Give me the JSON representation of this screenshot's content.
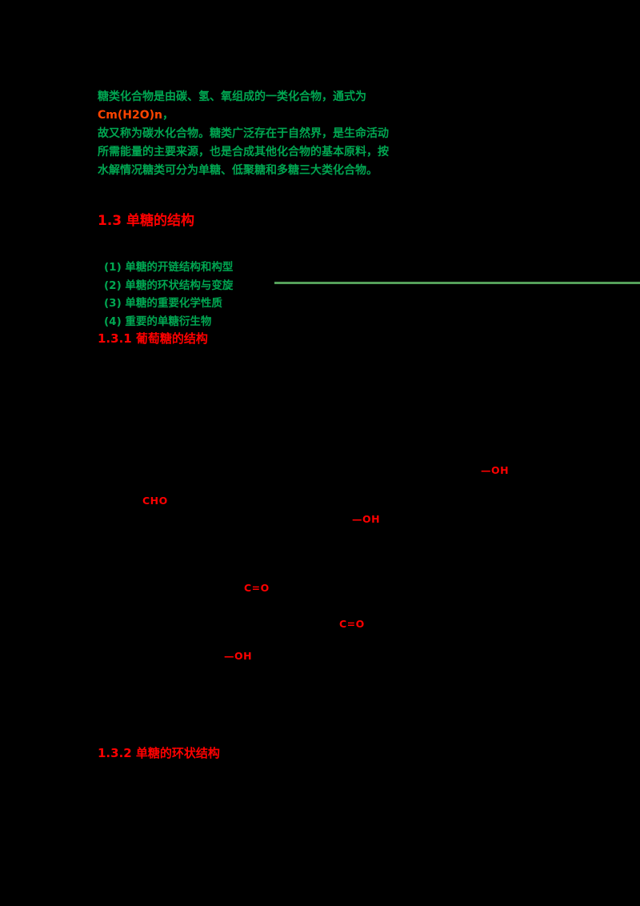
{
  "colors": {
    "background": "#000000",
    "green_text": "#00a651",
    "red_text": "#ff0000",
    "orange_red_inline": "#ff4400",
    "divider_green": "#55a05a"
  },
  "intro": {
    "line1_pre": "糖类化合物是由碳、氢、氧组成的一类化合物，通式为",
    "line1_red": "Cm(H2O)n",
    "line1_post": "，",
    "line2": "故又称为碳水化合物。糖类广泛存在于自然界，是生命活动",
    "line3": "所需能量的主要来源，也是合成其他化合物的基本原料，按",
    "line4": "水解情况糖类可分为单糖、低聚糖和多糖三大类化合物。"
  },
  "section": {
    "heading": "1.3 单糖的结构"
  },
  "topics": {
    "items": [
      {
        "text": "(1) 单糖的开链结构和构型"
      },
      {
        "text": "(2) 单糖的环状结构与变旋"
      },
      {
        "text": "(3) 单糖的重要化学性质"
      },
      {
        "text": "(4) 重要的单糖衍生物"
      }
    ]
  },
  "subsection1": {
    "heading": "1.3.1 葡萄糖的结构"
  },
  "figure": {
    "labels": [
      {
        "name": "hydroxyl",
        "text": "—OH"
      },
      {
        "name": "aldehyde",
        "text": "CHO"
      },
      {
        "name": "hydroxyl",
        "text": "—OH"
      },
      {
        "name": "keto",
        "text": "C=O"
      },
      {
        "name": "keto",
        "text": "C=O"
      },
      {
        "name": "hydroxyl",
        "text": "—OH"
      }
    ]
  },
  "subsection2": {
    "heading": "1.3.2 单糖的环状结构"
  }
}
